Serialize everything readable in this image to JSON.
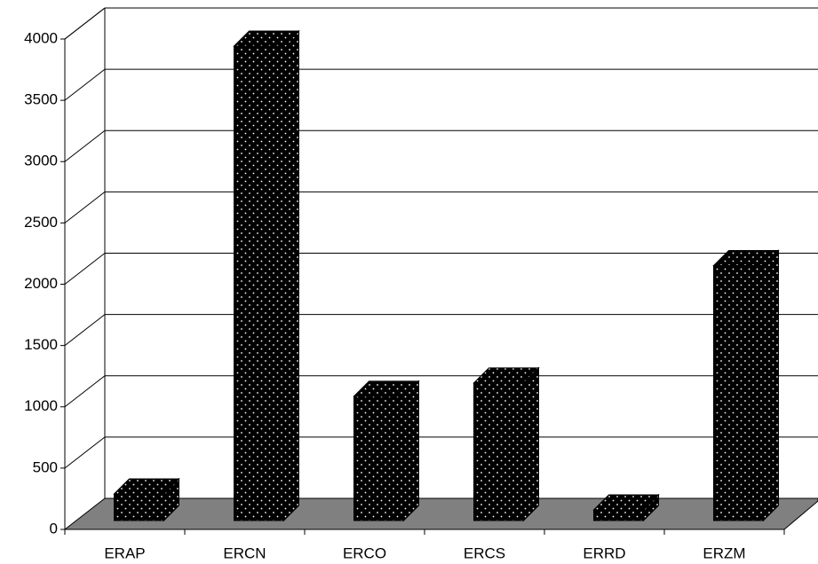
{
  "chart_data": {
    "type": "bar3d",
    "categories": [
      "ERAP",
      "ERCN",
      "ERCO",
      "ERCS",
      "ERRD",
      "ERZM"
    ],
    "values": [
      217,
      3870,
      1014,
      1122,
      87,
      2080
    ],
    "color": "#000000",
    "ylim": [
      0,
      4000
    ],
    "yticks": [
      0,
      500,
      1000,
      1500,
      2000,
      2500,
      3000,
      3500,
      4000
    ],
    "grid": true
  }
}
